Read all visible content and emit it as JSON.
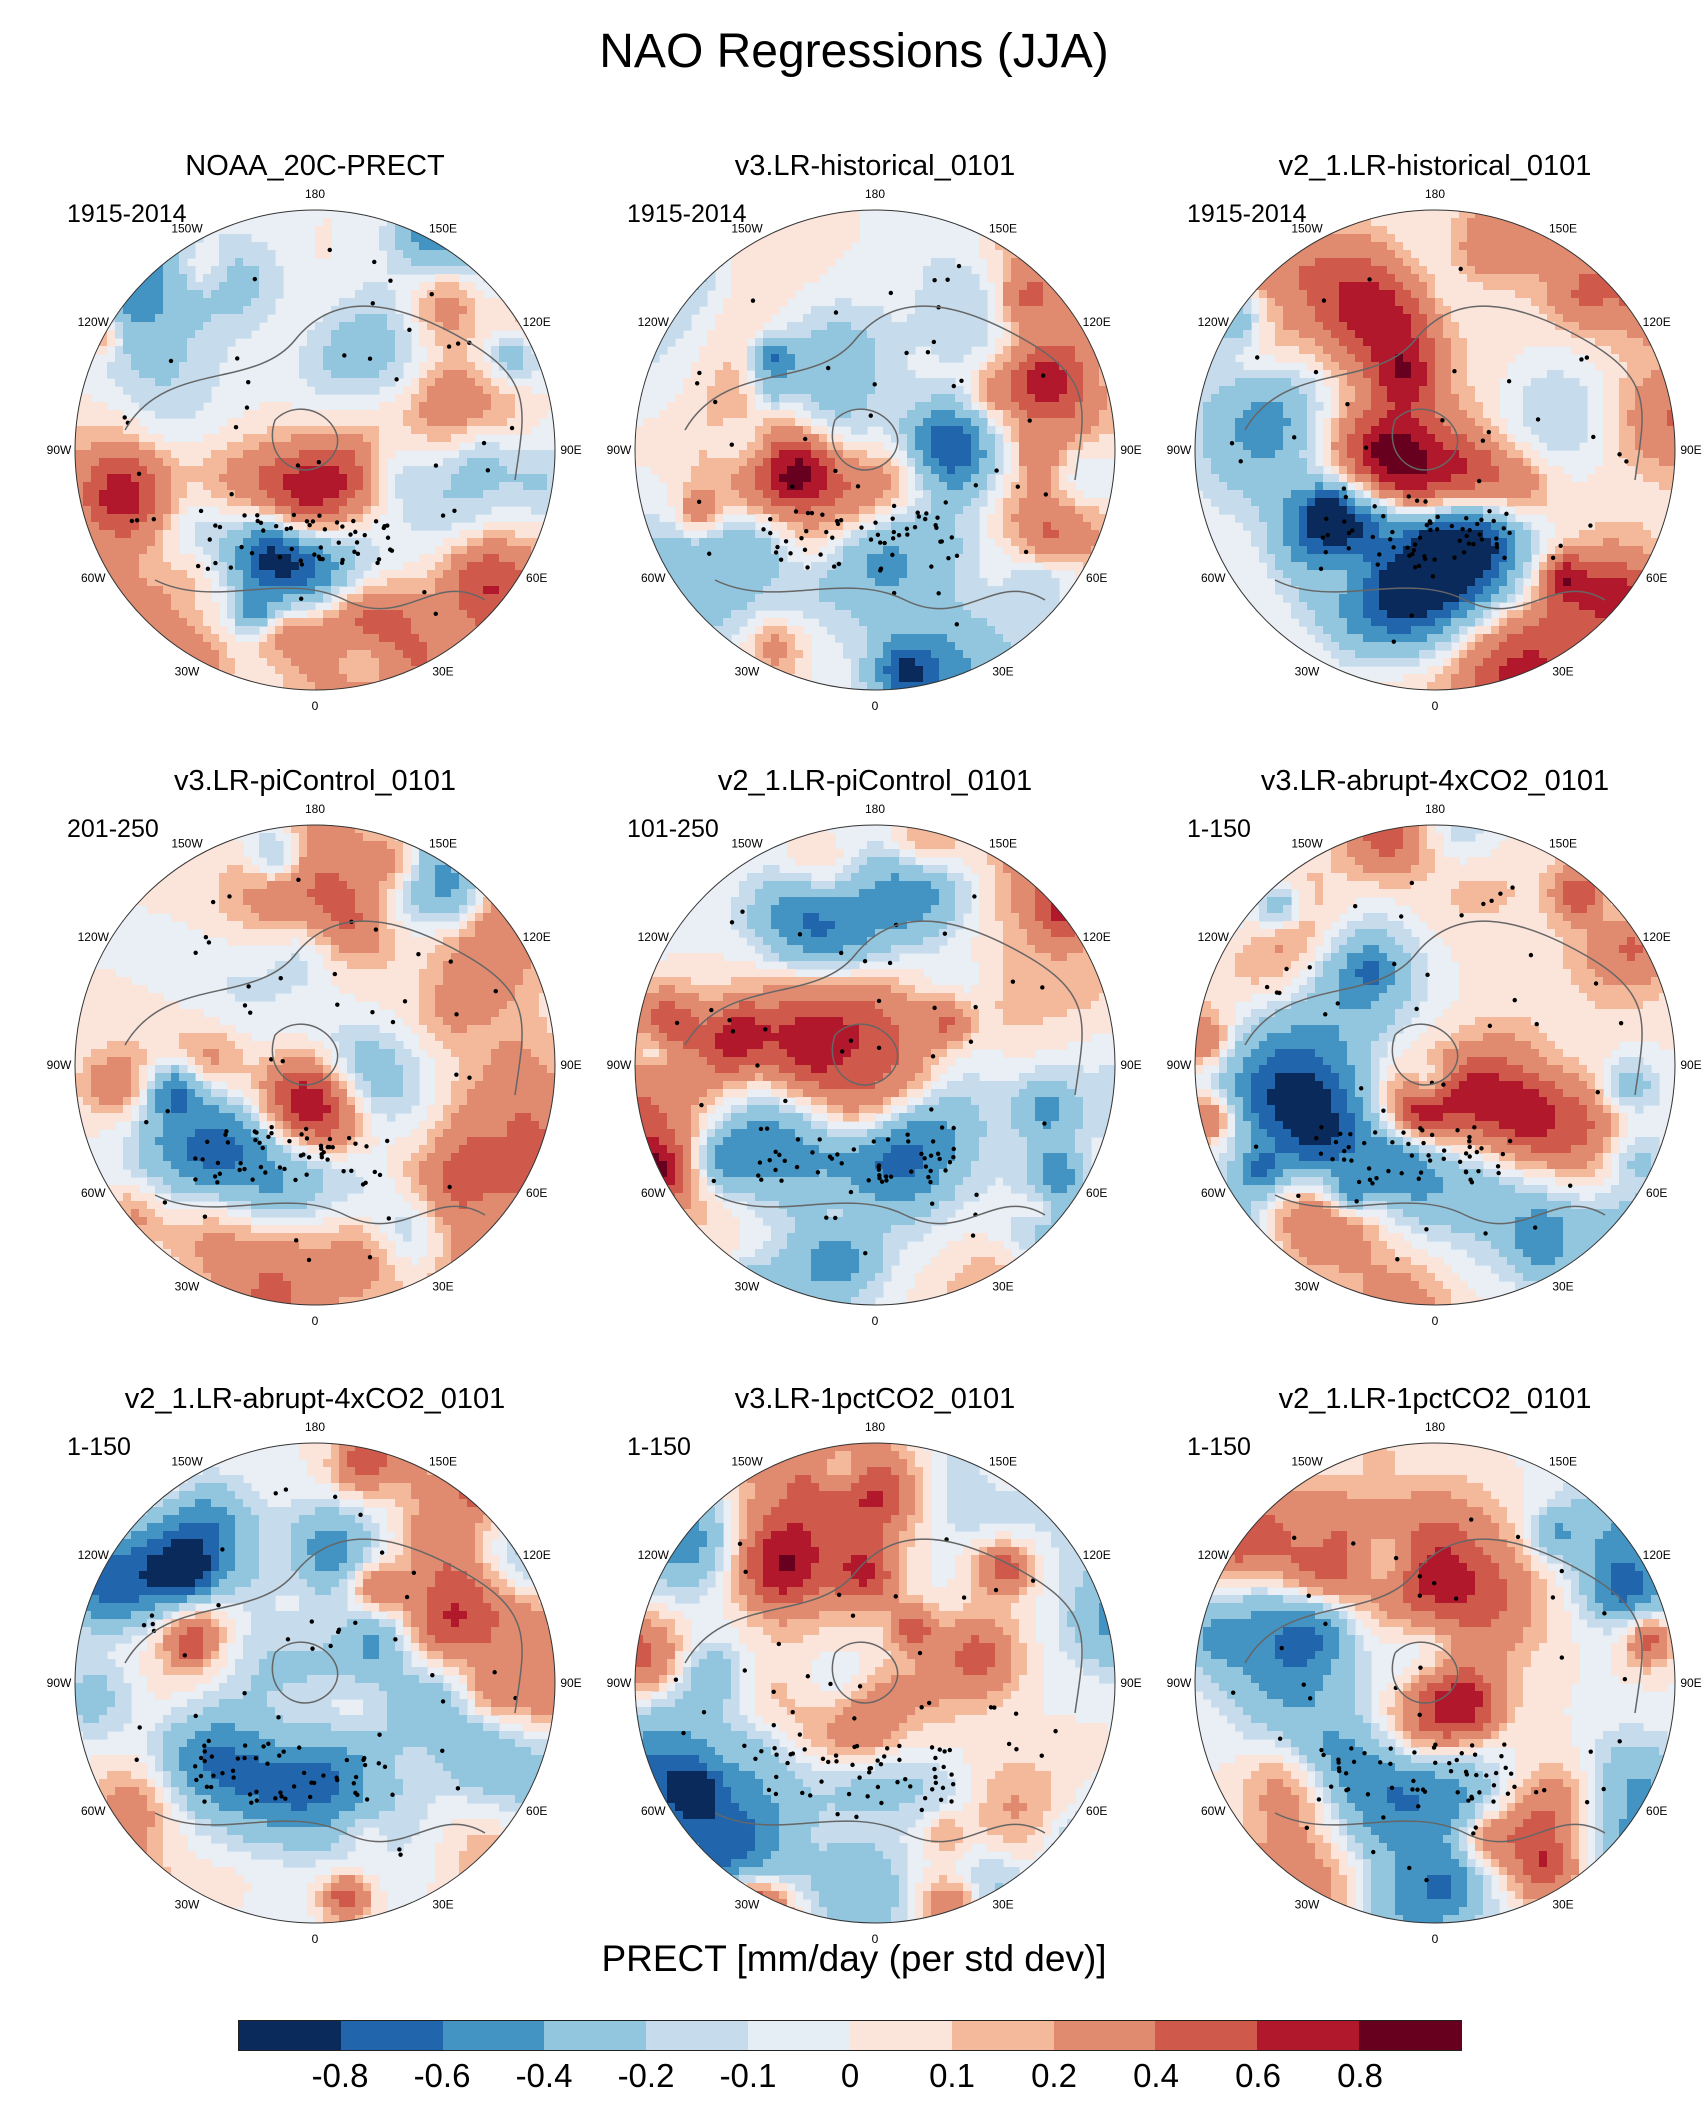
{
  "title": "NAO Regressions (JJA)",
  "panels": [
    {
      "title": "NOAA_20C-PRECT",
      "period": "1915-2014",
      "seed": 11
    },
    {
      "title": "v3.LR-historical_0101",
      "period": "1915-2014",
      "seed": 23
    },
    {
      "title": "v2_1.LR-historical_0101",
      "period": "1915-2014",
      "seed": 37
    },
    {
      "title": "v3.LR-piControl_0101",
      "period": "201-250",
      "seed": 41
    },
    {
      "title": "v2_1.LR-piControl_0101",
      "period": "101-250",
      "seed": 53
    },
    {
      "title": "v3.LR-abrupt-4xCO2_0101",
      "period": "1-150",
      "seed": 67
    },
    {
      "title": "v2_1.LR-abrupt-4xCO2_0101",
      "period": "1-150",
      "seed": 71
    },
    {
      "title": "v3.LR-1pctCO2_0101",
      "period": "1-150",
      "seed": 83
    },
    {
      "title": "v2_1.LR-1pctCO2_0101",
      "period": "1-150",
      "seed": 97
    }
  ],
  "longitude_labels": [
    "180",
    "150E",
    "120E",
    "90E",
    "60E",
    "30E",
    "0",
    "30W",
    "60W",
    "90W",
    "120W",
    "150W"
  ],
  "colorbar": {
    "title": "PRECT [mm/day (per std dev)]",
    "ticks": [
      "-0.8",
      "-0.6",
      "-0.4",
      "-0.2",
      "-0.1",
      "0",
      "0.1",
      "0.2",
      "0.4",
      "0.6",
      "0.8"
    ],
    "colors": [
      "#0b2a5c",
      "#2166ac",
      "#4393c3",
      "#92c5de",
      "#c6dcec",
      "#e6eef5",
      "#fbe4da",
      "#f4b89a",
      "#e08b6f",
      "#cf5a4c",
      "#b2182b",
      "#67001f"
    ]
  }
}
